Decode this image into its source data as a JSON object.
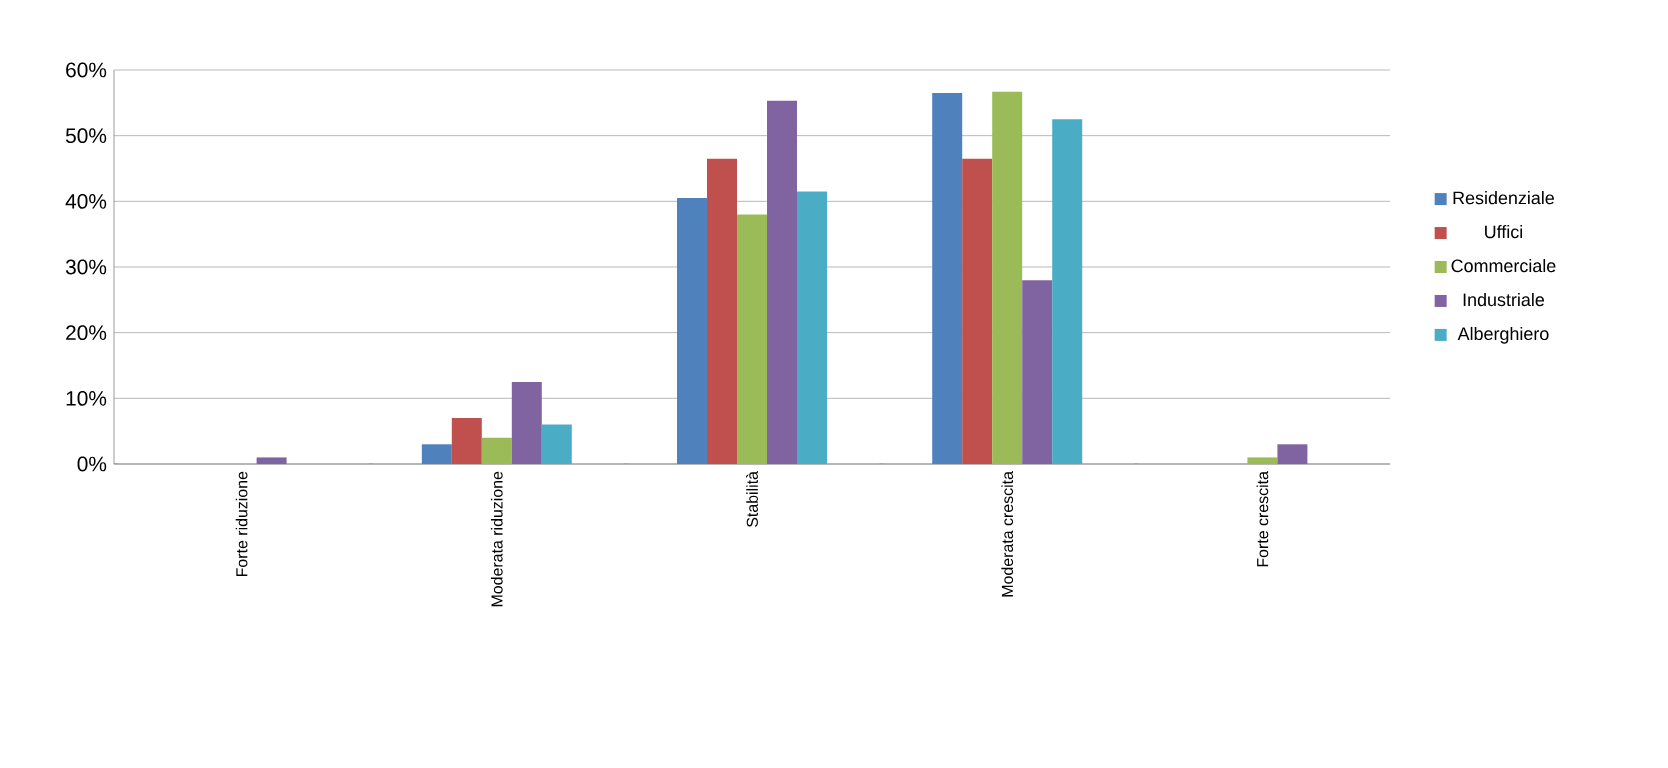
{
  "chart_data": {
    "type": "bar",
    "categories": [
      "Forte riduzione",
      "Moderata riduzione",
      "Stabilità",
      "Moderata crescita",
      "Forte crescita"
    ],
    "series": [
      {
        "name": "Residenziale",
        "color": "#4f81bd",
        "values": [
          0,
          3,
          40.5,
          56.5,
          0
        ]
      },
      {
        "name": "Uffici",
        "color": "#c0504d",
        "values": [
          0,
          7,
          46.5,
          46.5,
          0
        ]
      },
      {
        "name": "Commerciale",
        "color": "#9bbb59",
        "values": [
          0,
          4,
          38,
          56.7,
          1
        ]
      },
      {
        "name": "Industriale",
        "color": "#8064a2",
        "values": [
          1,
          12.5,
          55.3,
          28,
          3
        ]
      },
      {
        "name": "Alberghiero",
        "color": "#4bacc6",
        "values": [
          0,
          6,
          41.5,
          52.5,
          0
        ]
      }
    ],
    "ylim": [
      0,
      60
    ],
    "yticks": [
      {
        "value": 0,
        "label": "0%"
      },
      {
        "value": 10,
        "label": "10%"
      },
      {
        "value": 20,
        "label": "20%"
      },
      {
        "value": 30,
        "label": "30%"
      },
      {
        "value": 40,
        "label": "40%"
      },
      {
        "value": 50,
        "label": "50%"
      },
      {
        "value": 60,
        "label": "60%"
      }
    ],
    "grid": "y",
    "legend": "right"
  }
}
